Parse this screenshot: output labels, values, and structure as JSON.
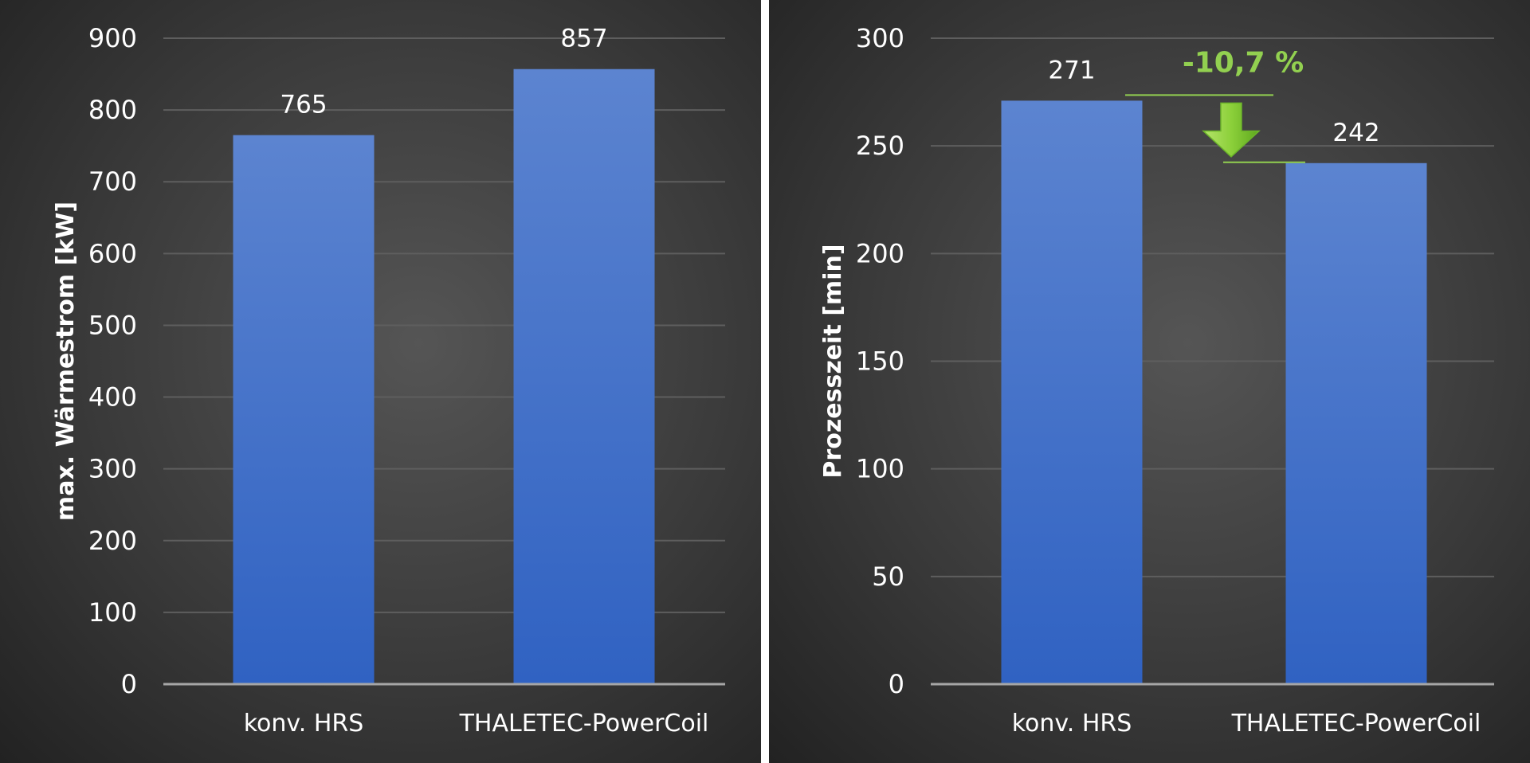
{
  "chart_data": [
    {
      "type": "bar",
      "categories": [
        "konv. HRS",
        "THALETEC-PowerCoil"
      ],
      "values": [
        765,
        857
      ],
      "ylabel": "max. Wärmestrom [kW]",
      "ylim": [
        0,
        900
      ],
      "yticks": [
        0,
        100,
        200,
        300,
        400,
        500,
        600,
        700,
        800,
        900
      ],
      "grid": true
    },
    {
      "type": "bar",
      "categories": [
        "konv. HRS",
        "THALETEC-PowerCoil"
      ],
      "values": [
        271,
        242
      ],
      "ylabel": "Prozesszeit [min]",
      "ylim": [
        0,
        300
      ],
      "yticks": [
        0,
        50,
        100,
        150,
        200,
        250,
        300
      ],
      "grid": true,
      "annotation": {
        "text": "-10,7 %",
        "color": "#92d050",
        "from_value": 271,
        "to_value": 242
      }
    }
  ],
  "colors": {
    "bar_top": "#5c84d0",
    "bar_bottom": "#3062c2",
    "grid": "#5e5e5e",
    "axis": "#a6a6a6",
    "annotation": "#92d050"
  }
}
